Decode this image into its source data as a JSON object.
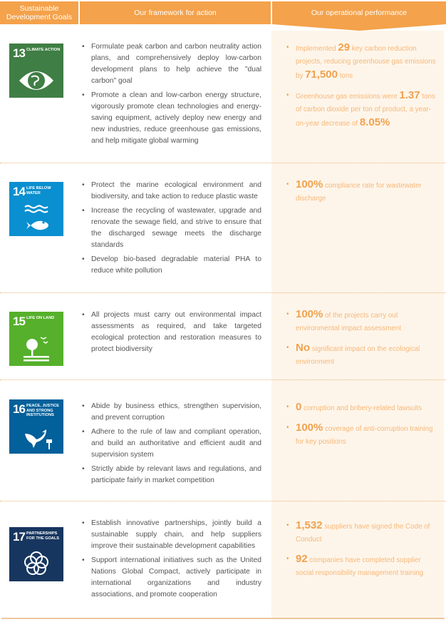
{
  "header": {
    "col1": "Sustainable Development Goals",
    "col2": "Our framework for action",
    "col3": "Our operational performance"
  },
  "rows": [
    {
      "goal": {
        "number": "13",
        "label": "Climate Action",
        "color": "#3f7e44",
        "icon": "eye-globe-icon"
      },
      "framework": [
        "Formulate peak carbon and carbon neutrality action plans, and comprehensively deploy low-carbon development plans to help achieve the \"dual carbon\" goal",
        "Promote a clean and low-carbon energy structure, vigorously promote clean technologies and energy-saving equipment, actively deploy new energy and new industries, reduce greenhouse gas emissions, and help mitigate global warming"
      ],
      "performance": [
        [
          {
            "t": "Implemented "
          },
          {
            "t": "29",
            "big": true
          },
          {
            "t": " key carbon reduction projects, reducing greenhouse gas emissions by "
          },
          {
            "t": "71,500",
            "big": true
          },
          {
            "t": " tons"
          }
        ],
        [
          {
            "t": "Greenhouse gas emissions were "
          },
          {
            "t": "1.37",
            "big": true
          },
          {
            "t": " tons of carbon dioxide per ton of product, a year-on-year decrease of "
          },
          {
            "t": "8.05%",
            "big": true
          }
        ]
      ]
    },
    {
      "goal": {
        "number": "14",
        "label": "Life Below Water",
        "color": "#0a8fd0",
        "icon": "fish-waves-icon"
      },
      "framework": [
        "Protect the marine ecological environment and biodiversity, and take action to reduce plastic waste",
        "Increase the recycling of wastewater, upgrade and renovate the sewage field, and strive to ensure that the discharged sewage meets the discharge standards",
        "Develop bio-based degradable material PHA to reduce white pollution"
      ],
      "performance": [
        [
          {
            "t": "100%",
            "big": true
          },
          {
            "t": " compliance rate for wastewater discharge"
          }
        ]
      ]
    },
    {
      "goal": {
        "number": "15",
        "label": "Life On Land",
        "color": "#56b02b",
        "icon": "tree-birds-icon"
      },
      "framework": [
        "All projects must carry out environmental impact assessments as required, and take targeted ecological protection and restoration measures to protect biodiversity"
      ],
      "performance": [
        [
          {
            "t": "100%",
            "big": true
          },
          {
            "t": " of the projects carry out environmental impact assessment"
          }
        ],
        [
          {
            "t": "No",
            "big": true
          },
          {
            "t": " significant impact on the ecological environment"
          }
        ]
      ]
    },
    {
      "goal": {
        "number": "16",
        "label": "Peace, Justice and Strong Institutions",
        "color": "#02609a",
        "icon": "dove-gavel-icon"
      },
      "framework": [
        "Abide by business ethics, strengthen supervision, and prevent corruption",
        "Adhere to the rule of law and compliant operation, and build an authoritative and efficient audit and supervision system",
        "Strictly abide by relevant laws and regulations, and participate fairly in market competition"
      ],
      "performance": [
        [
          {
            "t": "0",
            "big": true
          },
          {
            "t": " corruption and bribery-related lawsuits"
          }
        ],
        [
          {
            "t": "100%",
            "big": true
          },
          {
            "t": " coverage of anti-corruption training for key positions"
          }
        ]
      ]
    },
    {
      "goal": {
        "number": "17",
        "label": "Partnerships for the Goals",
        "color": "#17365f",
        "icon": "rings-flower-icon"
      },
      "framework": [
        "Establish innovative partnerships, jointly build a sustainable supply chain, and help suppliers improve their sustainable development capabilities",
        "Support international initiatives such as the United Nations Global Compact, actively participate in international organizations and industry associations, and promote cooperation"
      ],
      "performance": [
        [
          {
            "t": "1,532",
            "big": true
          },
          {
            "t": " suppliers have signed the Code of Conduct"
          }
        ],
        [
          {
            "t": "92",
            "big": true
          },
          {
            "t": " companies have completed supplier social responsibility management training"
          }
        ]
      ]
    }
  ],
  "colors": {
    "header": "#f4a24b",
    "panel": "#fef5ea",
    "accent": "#f0a24e"
  }
}
